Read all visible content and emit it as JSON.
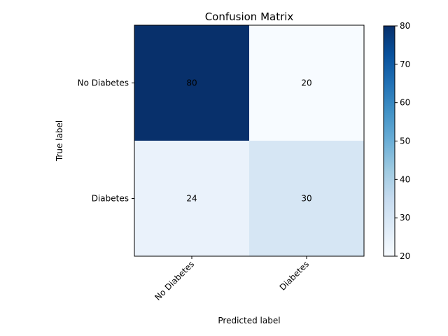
{
  "chart_data": {
    "type": "heatmap",
    "title": "Confusion Matrix",
    "xlabel": "Predicted label",
    "ylabel": "True label",
    "x_categories": [
      "No Diabetes",
      "Diabetes"
    ],
    "y_categories": [
      "No Diabetes",
      "Diabetes"
    ],
    "values": [
      [
        80,
        20
      ],
      [
        24,
        30
      ]
    ],
    "colormap": "Blues",
    "colorbar": {
      "range": [
        20,
        80
      ],
      "ticks": [
        20,
        30,
        40,
        50,
        60,
        70,
        80
      ]
    },
    "cell_text_colors": {
      "dark": "#ffffff",
      "light": "#000000"
    }
  }
}
